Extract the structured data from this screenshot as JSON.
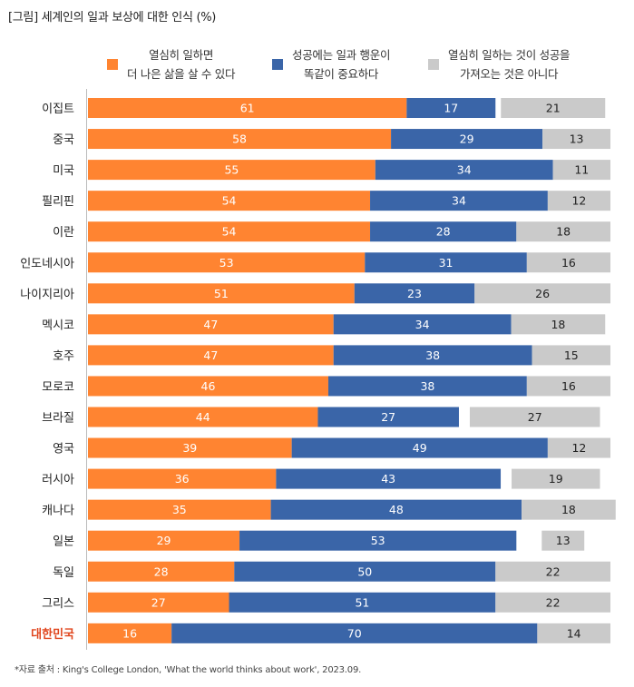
{
  "title": "[그림] 세계인의 일과 보상에 대한 인식 (%)",
  "footer": "*자료 출처 : King's College London, 'What the world thinks about work', 2023.09.",
  "colors": {
    "orange": "#FF8431",
    "blue": "#3A65A8",
    "gray": "#CACACA",
    "highlight": "#E0461E"
  },
  "chart_data": {
    "type": "bar",
    "orientation": "horizontal-stacked",
    "title": "[그림] 세계인의 일과 보상에 대한 인식 (%)",
    "unit": "%",
    "highlight_category": "대한민국",
    "categories": [
      "이집트",
      "중국",
      "미국",
      "필리핀",
      "이란",
      "인도네시아",
      "나이지리아",
      "멕시코",
      "호주",
      "모로코",
      "브라질",
      "영국",
      "러시아",
      "캐나다",
      "일본",
      "독일",
      "그리스",
      "대한민국"
    ],
    "series": [
      {
        "name": "열심히 일하면 더 나은 삶을 살 수 있다",
        "legend_lines": [
          "열심히 일하면",
          "더 나은 삶을 살 수 있다"
        ],
        "color": "#FF8431",
        "values": [
          61,
          58,
          55,
          54,
          54,
          53,
          51,
          47,
          47,
          46,
          44,
          39,
          36,
          35,
          29,
          28,
          27,
          16
        ]
      },
      {
        "name": "성공에는 일과 행운이 똑같이 중요하다",
        "legend_lines": [
          "성공에는 일과 행운이",
          "똑같이 중요하다"
        ],
        "color": "#3A65A8",
        "values": [
          17,
          29,
          34,
          34,
          28,
          31,
          23,
          34,
          38,
          38,
          27,
          49,
          43,
          48,
          53,
          50,
          51,
          70
        ]
      },
      {
        "name": "열심히 일하는 것이 성공을 가져오는 것은 아니다",
        "legend_lines": [
          "열심히 일하는 것이 성공을",
          "가져오는 것은 아니다"
        ],
        "color": "#CACACA",
        "values": [
          21,
          13,
          11,
          12,
          18,
          16,
          26,
          18,
          15,
          16,
          27,
          12,
          19,
          18,
          13,
          22,
          22,
          14
        ]
      }
    ]
  }
}
